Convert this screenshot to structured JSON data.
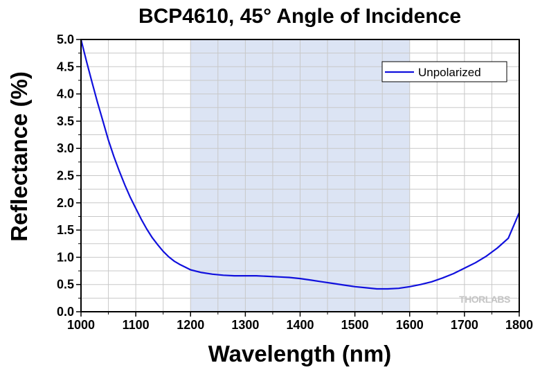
{
  "chart_data": {
    "type": "line",
    "title": "BCP4610, 45° Angle of Incidence",
    "xlabel": "Wavelength (nm)",
    "ylabel": "Reflectance (%)",
    "xlim": [
      1000,
      1800
    ],
    "ylim": [
      0,
      5.0
    ],
    "xticks": [
      1000,
      1100,
      1200,
      1300,
      1400,
      1500,
      1600,
      1700,
      1800
    ],
    "yticks": [
      0.0,
      0.5,
      1.0,
      1.5,
      2.0,
      2.5,
      3.0,
      3.5,
      4.0,
      4.5,
      5.0
    ],
    "xtick_labels": [
      "1000",
      "1100",
      "1200",
      "1300",
      "1400",
      "1500",
      "1600",
      "1700",
      "1800"
    ],
    "ytick_labels": [
      "0.0",
      "0.5",
      "1.0",
      "1.5",
      "2.0",
      "2.5",
      "3.0",
      "3.5",
      "4.0",
      "4.5",
      "5.0"
    ],
    "grid": true,
    "legend_position": "top-right",
    "shaded_region": {
      "x": [
        1200,
        1600
      ],
      "color": "#dce4f4"
    },
    "series": [
      {
        "name": "Unpolarized",
        "color": "#1010dd",
        "x": [
          1000,
          1010,
          1020,
          1030,
          1040,
          1050,
          1060,
          1070,
          1080,
          1090,
          1100,
          1110,
          1120,
          1130,
          1140,
          1150,
          1160,
          1170,
          1180,
          1190,
          1200,
          1220,
          1240,
          1260,
          1280,
          1300,
          1320,
          1340,
          1360,
          1380,
          1400,
          1420,
          1440,
          1460,
          1480,
          1500,
          1520,
          1540,
          1560,
          1580,
          1600,
          1620,
          1640,
          1660,
          1680,
          1700,
          1720,
          1740,
          1760,
          1780,
          1800
        ],
        "values": [
          5.0,
          4.6,
          4.22,
          3.85,
          3.5,
          3.15,
          2.85,
          2.58,
          2.33,
          2.1,
          1.9,
          1.7,
          1.52,
          1.36,
          1.23,
          1.11,
          1.01,
          0.93,
          0.87,
          0.82,
          0.77,
          0.72,
          0.69,
          0.67,
          0.66,
          0.66,
          0.66,
          0.65,
          0.64,
          0.63,
          0.61,
          0.58,
          0.55,
          0.52,
          0.49,
          0.46,
          0.44,
          0.42,
          0.42,
          0.43,
          0.46,
          0.5,
          0.55,
          0.62,
          0.7,
          0.8,
          0.9,
          1.02,
          1.17,
          1.35,
          1.82
        ]
      }
    ]
  },
  "logo": {
    "text": "THORLABS"
  }
}
